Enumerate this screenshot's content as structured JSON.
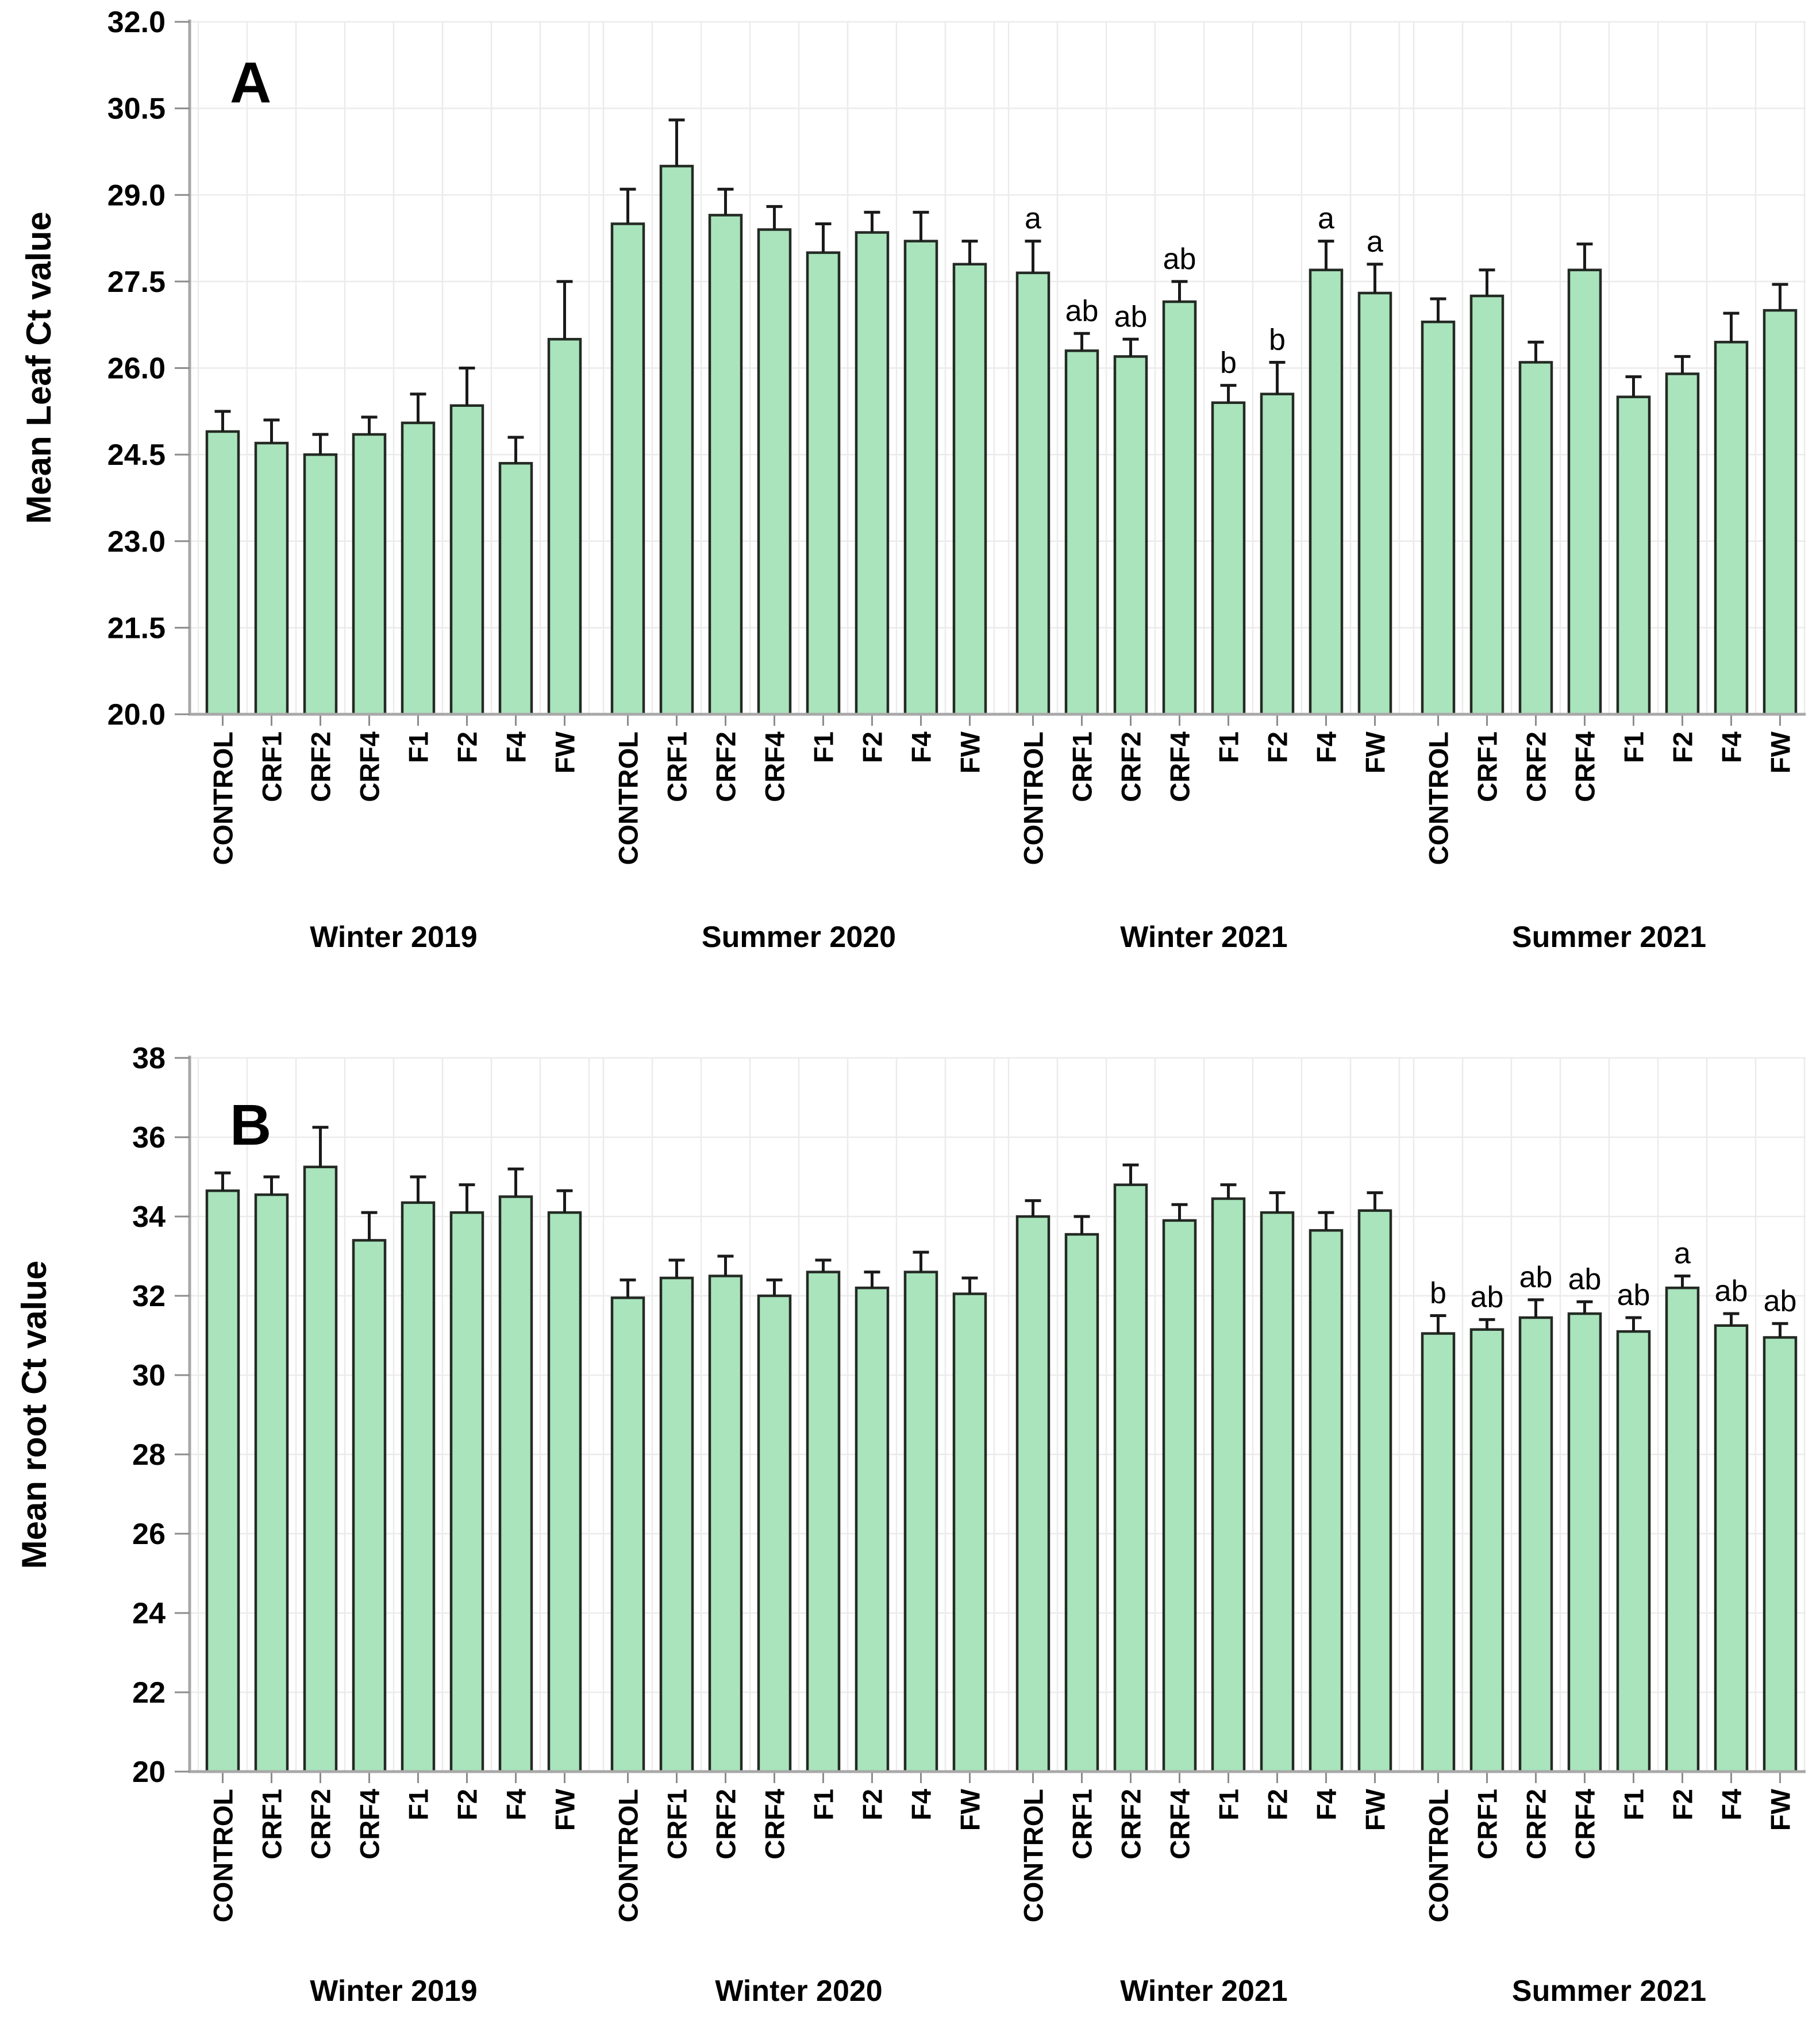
{
  "figure": {
    "description": "Two-panel bar chart of mean Ct values by fertilizer treatment across seasons, with standard-error bars and significance letters",
    "colors": {
      "bar_fill": "#a9e4bc",
      "bar_stroke": "#242a24",
      "error_bar": "#1a1a1a",
      "gridline": "#ebebeb",
      "axis_line": "#a8a8a8",
      "tick_mark": "#8c8c8c",
      "text": "#000000",
      "background": "#ffffff"
    }
  },
  "chart_data": [
    {
      "type": "bar",
      "panel_label": "A",
      "ylabel": "Mean Leaf Ct value",
      "xlabel": "",
      "ylim": [
        20.0,
        32.0
      ],
      "yticks": [
        20.0,
        21.5,
        23.0,
        24.5,
        26.0,
        27.5,
        29.0,
        30.5,
        32.0
      ],
      "ytick_labels": [
        "20.0",
        "21.5",
        "23.0",
        "24.5",
        "26.0",
        "27.5",
        "29.0",
        "30.5",
        "32.0"
      ],
      "grid": true,
      "legend": "none",
      "error_bars": "upper",
      "categories": [
        "CONTROL",
        "CRF1",
        "CRF2",
        "CRF4",
        "F1",
        "F2",
        "F4",
        "FW"
      ],
      "groups": [
        {
          "label": "Winter 2019",
          "values": [
            24.9,
            24.7,
            24.5,
            24.85,
            25.05,
            25.35,
            24.35,
            26.5
          ],
          "errors": [
            0.35,
            0.4,
            0.35,
            0.3,
            0.5,
            0.65,
            0.45,
            1.0
          ],
          "letters": [
            "",
            "",
            "",
            "",
            "",
            "",
            "",
            ""
          ]
        },
        {
          "label": "Summer 2020",
          "values": [
            28.5,
            29.5,
            28.65,
            28.4,
            28.0,
            28.35,
            28.2,
            27.8
          ],
          "errors": [
            0.6,
            0.8,
            0.45,
            0.4,
            0.5,
            0.35,
            0.5,
            0.4
          ],
          "letters": [
            "",
            "",
            "",
            "",
            "",
            "",
            "",
            ""
          ]
        },
        {
          "label": "Winter 2021",
          "values": [
            27.65,
            26.3,
            26.2,
            27.15,
            25.4,
            25.55,
            27.7,
            27.3
          ],
          "errors": [
            0.55,
            0.3,
            0.3,
            0.35,
            0.3,
            0.55,
            0.5,
            0.5
          ],
          "letters": [
            "a",
            "ab",
            "ab",
            "ab",
            "b",
            "b",
            "a",
            "a"
          ]
        },
        {
          "label": "Summer 2021",
          "values": [
            26.8,
            27.25,
            26.1,
            27.7,
            25.5,
            25.9,
            26.45,
            27.0
          ],
          "errors": [
            0.4,
            0.45,
            0.35,
            0.45,
            0.35,
            0.3,
            0.5,
            0.45
          ],
          "letters": [
            "",
            "",
            "",
            "",
            "",
            "",
            "",
            ""
          ]
        }
      ]
    },
    {
      "type": "bar",
      "panel_label": "B",
      "ylabel": "Mean root Ct value",
      "xlabel": "",
      "ylim": [
        20,
        38
      ],
      "yticks": [
        20,
        22,
        24,
        26,
        28,
        30,
        32,
        34,
        36,
        38
      ],
      "ytick_labels": [
        "20",
        "22",
        "24",
        "26",
        "28",
        "30",
        "32",
        "34",
        "36",
        "38"
      ],
      "grid": true,
      "legend": "none",
      "error_bars": "upper",
      "categories": [
        "CONTROL",
        "CRF1",
        "CRF2",
        "CRF4",
        "F1",
        "F2",
        "F4",
        "FW"
      ],
      "groups": [
        {
          "label": "Winter 2019",
          "values": [
            34.65,
            34.55,
            35.25,
            33.4,
            34.35,
            34.1,
            34.5,
            34.1
          ],
          "errors": [
            0.45,
            0.45,
            1.0,
            0.7,
            0.65,
            0.7,
            0.7,
            0.55
          ],
          "letters": [
            "",
            "",
            "",
            "",
            "",
            "",
            "",
            ""
          ]
        },
        {
          "label": "Winter 2020",
          "values": [
            31.95,
            32.45,
            32.5,
            32.0,
            32.6,
            32.2,
            32.6,
            32.05
          ],
          "errors": [
            0.45,
            0.45,
            0.5,
            0.4,
            0.3,
            0.4,
            0.5,
            0.4
          ],
          "letters": [
            "",
            "",
            "",
            "",
            "",
            "",
            "",
            ""
          ]
        },
        {
          "label": "Winter 2021",
          "values": [
            34.0,
            33.55,
            34.8,
            33.9,
            34.45,
            34.1,
            33.65,
            34.15
          ],
          "errors": [
            0.4,
            0.45,
            0.5,
            0.4,
            0.35,
            0.5,
            0.45,
            0.45
          ],
          "letters": [
            "",
            "",
            "",
            "",
            "",
            "",
            "",
            ""
          ]
        },
        {
          "label": "Summer 2021",
          "values": [
            31.05,
            31.15,
            31.45,
            31.55,
            31.1,
            32.2,
            31.25,
            30.95
          ],
          "errors": [
            0.45,
            0.25,
            0.45,
            0.3,
            0.35,
            0.3,
            0.3,
            0.35
          ],
          "letters": [
            "b",
            "ab",
            "ab",
            "ab",
            "ab",
            "a",
            "ab",
            "ab"
          ]
        }
      ]
    }
  ]
}
